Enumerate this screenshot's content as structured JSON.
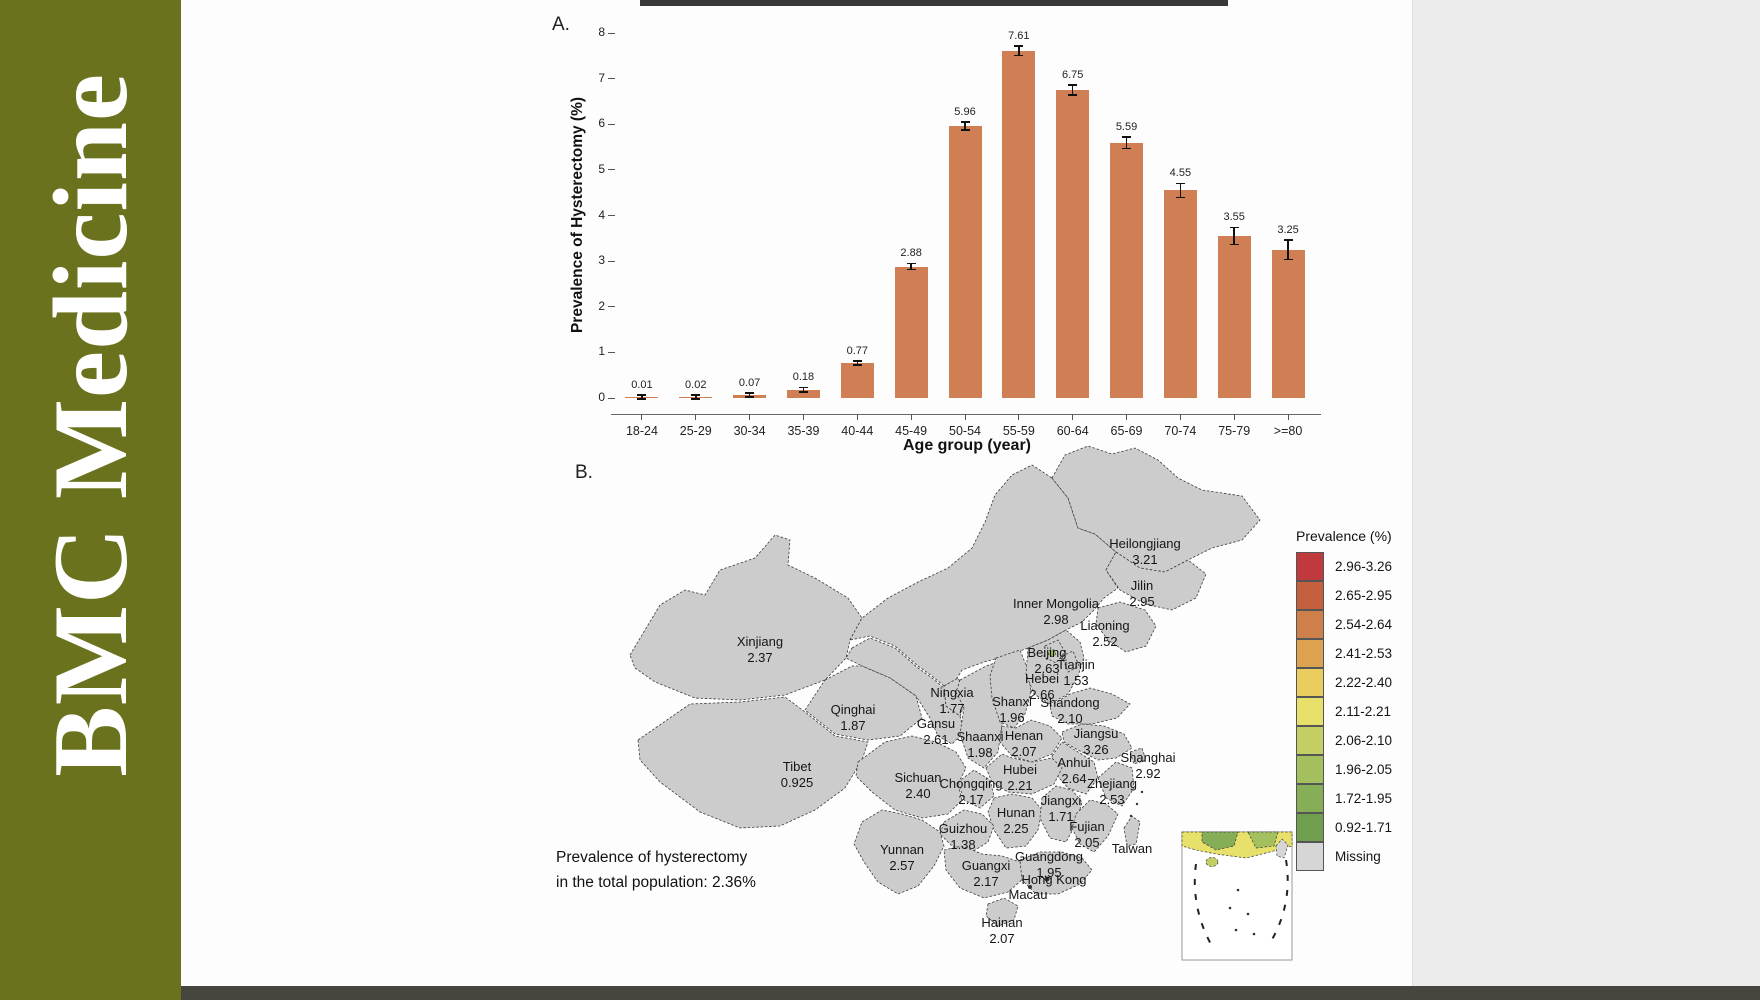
{
  "banner": {
    "journal_title": "BMC Medicine",
    "background_color": "#6b721e",
    "text_color": "#ffffff"
  },
  "panelA": {
    "label": "A."
  },
  "panelB": {
    "label": "B.",
    "annotation_line1": "Prevalence of hysterectomy",
    "annotation_line2": "in the total population: 2.36%"
  },
  "chart_data": [
    {
      "type": "bar",
      "title": "",
      "xlabel": "Age group (year)",
      "ylabel": "Prevalence of Hysterectomy (%)",
      "categories": [
        "18-24",
        "25-29",
        "30-34",
        "35-39",
        "40-44",
        "45-49",
        "50-54",
        "55-59",
        "60-64",
        "65-69",
        "70-74",
        "75-79",
        ">=80"
      ],
      "values": [
        0.01,
        0.02,
        0.07,
        0.18,
        0.77,
        2.88,
        5.96,
        7.61,
        6.75,
        5.59,
        4.55,
        3.55,
        3.25
      ],
      "value_labels": [
        "0.01",
        "0.02",
        "0.07",
        "0.18",
        "0.77",
        "2.88",
        "5.96",
        "7.61",
        "6.75",
        "5.59",
        "4.55",
        "3.55",
        "3.25"
      ],
      "errors": [
        0.01,
        0.01,
        0.02,
        0.03,
        0.03,
        0.05,
        0.07,
        0.09,
        0.09,
        0.11,
        0.14,
        0.17,
        0.2
      ],
      "ylim": [
        0,
        8
      ],
      "yticks": [
        0,
        1,
        2,
        3,
        4,
        5,
        6,
        7,
        8
      ],
      "bar_color": "#d07f55",
      "error_color": "#111111",
      "grid": false
    },
    {
      "type": "choropleth",
      "region": "China provinces",
      "legend_title": "Prevalence (%)",
      "legend_position": "right",
      "annotation": "Prevalence of hysterectomy in the total population: 2.36%",
      "bins": [
        {
          "range": "2.96-3.26",
          "color": "#c0393c"
        },
        {
          "range": "2.65-2.95",
          "color": "#c4603d"
        },
        {
          "range": "2.54-2.64",
          "color": "#cf7f4a"
        },
        {
          "range": "2.41-2.53",
          "color": "#dda24f"
        },
        {
          "range": "2.22-2.40",
          "color": "#e9cd5e"
        },
        {
          "range": "2.11-2.21",
          "color": "#e7e06a"
        },
        {
          "range": "2.06-2.10",
          "color": "#c3ce63"
        },
        {
          "range": "1.96-2.05",
          "color": "#a4c05e"
        },
        {
          "range": "1.72-1.95",
          "color": "#85ae56"
        },
        {
          "range": "0.92-1.71",
          "color": "#6f9e4f"
        },
        {
          "range": "Missing",
          "color": "#d6d6d6"
        }
      ],
      "provinces": [
        {
          "name": "Heilongjiang",
          "value": "3.21",
          "bin": 0
        },
        {
          "name": "Jilin",
          "value": "2.95",
          "bin": 1
        },
        {
          "name": "Liaoning",
          "value": "2.52",
          "bin": 3
        },
        {
          "name": "Inner Mongolia",
          "value": "2.98",
          "bin": 0
        },
        {
          "name": "Beijing",
          "value": "2.63",
          "bin": 2
        },
        {
          "name": "Tianjin",
          "value": "1.53",
          "bin": 9
        },
        {
          "name": "Hebei",
          "value": "2.66",
          "bin": 1
        },
        {
          "name": "Shanxi",
          "value": "1.96",
          "bin": 7
        },
        {
          "name": "Shandong",
          "value": "2.10",
          "bin": 6
        },
        {
          "name": "Ningxia",
          "value": "1.77",
          "bin": 8
        },
        {
          "name": "Gansu",
          "value": "2.61",
          "bin": 2
        },
        {
          "name": "Qinghai",
          "value": "1.87",
          "bin": 8
        },
        {
          "name": "Xinjiang",
          "value": "2.37",
          "bin": 4
        },
        {
          "name": "Tibet",
          "value": "0.925",
          "bin": 9
        },
        {
          "name": "Shaanxi",
          "value": "1.98",
          "bin": 7
        },
        {
          "name": "Henan",
          "value": "2.07",
          "bin": 6
        },
        {
          "name": "Jiangsu",
          "value": "3.26",
          "bin": 0
        },
        {
          "name": "Shanghai",
          "value": "2.92",
          "bin": 1
        },
        {
          "name": "Anhui",
          "value": "2.64",
          "bin": 2
        },
        {
          "name": "Zhejiang",
          "value": "2.53",
          "bin": 3
        },
        {
          "name": "Hubei",
          "value": "2.21",
          "bin": 5
        },
        {
          "name": "Chongqing",
          "value": "2.17",
          "bin": 5
        },
        {
          "name": "Sichuan",
          "value": "2.40",
          "bin": 4
        },
        {
          "name": "Hunan",
          "value": "2.25",
          "bin": 4
        },
        {
          "name": "Jiangxi",
          "value": "1.71",
          "bin": 9
        },
        {
          "name": "Guizhou",
          "value": "1.38",
          "bin": 9
        },
        {
          "name": "Fujian",
          "value": "2.05",
          "bin": 7
        },
        {
          "name": "Yunnan",
          "value": "2.57",
          "bin": 2
        },
        {
          "name": "Guangxi",
          "value": "2.17",
          "bin": 5
        },
        {
          "name": "Guangdong",
          "value": "1.95",
          "bin": 8
        },
        {
          "name": "Hainan",
          "value": "2.07",
          "bin": 6
        },
        {
          "name": "Taiwan",
          "value": null,
          "bin": 10
        },
        {
          "name": "Hong Kong",
          "value": null,
          "bin": null
        },
        {
          "name": "Macau",
          "value": null,
          "bin": null
        }
      ]
    }
  ]
}
